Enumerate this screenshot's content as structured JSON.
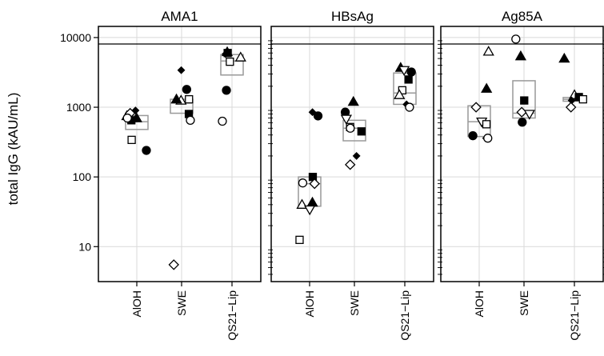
{
  "chart_data": {
    "type": "scatter",
    "ylabel": "total IgG (kAU/mL)",
    "yscale": "log",
    "ylim": [
      3.5,
      13000
    ],
    "yticks": [
      10,
      100,
      1000,
      10000
    ],
    "ytick_labels": [
      "10",
      "100",
      "1000",
      "10000"
    ],
    "grid": true,
    "categories": [
      "AlOH",
      "SWE",
      "QS21−Lip"
    ],
    "colors": {
      "marker": "#000000",
      "box": "#999999",
      "grid": "#d9d9d9"
    },
    "panels": [
      {
        "title": "AMA1",
        "boxes": [
          {
            "category": "AlOH",
            "q1": 480,
            "median": 620,
            "q3": 760
          },
          {
            "category": "SWE",
            "q1": 820,
            "median": 1150,
            "q3": 1300
          },
          {
            "category": "QS21−Lip",
            "q1": 2900,
            "median": 4600,
            "q3": 5700
          }
        ],
        "points": [
          {
            "category": "AlOH",
            "marker": "diamond-filled",
            "y": 900
          },
          {
            "category": "AlOH",
            "marker": "triangle-filled",
            "y": 700
          },
          {
            "category": "AlOH",
            "marker": "square-filled",
            "y": 650
          },
          {
            "category": "AlOH",
            "marker": "triangle-open",
            "y": 750
          },
          {
            "category": "AlOH",
            "marker": "diamond-open",
            "y": 820
          },
          {
            "category": "AlOH",
            "marker": "circle-open",
            "y": 700
          },
          {
            "category": "AlOH",
            "marker": "circle-filled",
            "y": 240
          },
          {
            "category": "AlOH",
            "marker": "square-open",
            "y": 340
          },
          {
            "category": "SWE",
            "marker": "diamond-filled",
            "y": 3400
          },
          {
            "category": "SWE",
            "marker": "circle-filled",
            "y": 1800
          },
          {
            "category": "SWE",
            "marker": "square-open",
            "y": 1300
          },
          {
            "category": "SWE",
            "marker": "triangle-open",
            "y": 1250
          },
          {
            "category": "SWE",
            "marker": "triangle-filled",
            "y": 1300
          },
          {
            "category": "SWE",
            "marker": "square-filled",
            "y": 800
          },
          {
            "category": "SWE",
            "marker": "circle-open",
            "y": 650
          },
          {
            "category": "SWE",
            "marker": "diamond-open",
            "y": 5.5
          },
          {
            "category": "QS21−Lip",
            "marker": "triangle-open",
            "y": 5200
          },
          {
            "category": "QS21−Lip",
            "marker": "square-filled",
            "y": 6000
          },
          {
            "category": "QS21−Lip",
            "marker": "triangle-filled",
            "y": 6200
          },
          {
            "category": "QS21−Lip",
            "marker": "diamond-filled",
            "y": 5800
          },
          {
            "category": "QS21−Lip",
            "marker": "square-open",
            "y": 4500
          },
          {
            "category": "QS21−Lip",
            "marker": "circle-filled",
            "y": 1750
          },
          {
            "category": "QS21−Lip",
            "marker": "circle-open",
            "y": 630
          }
        ]
      },
      {
        "title": "HBsAg",
        "boxes": [
          {
            "category": "AlOH",
            "q1": 38,
            "median": 80,
            "q3": 100
          },
          {
            "category": "SWE",
            "q1": 330,
            "median": 500,
            "q3": 650
          },
          {
            "category": "QS21−Lip",
            "q1": 1100,
            "median": 1600,
            "q3": 3100
          }
        ],
        "points": [
          {
            "category": "AlOH",
            "marker": "diamond-filled",
            "y": 850
          },
          {
            "category": "AlOH",
            "marker": "circle-filled",
            "y": 750
          },
          {
            "category": "AlOH",
            "marker": "square-filled",
            "y": 100
          },
          {
            "category": "AlOH",
            "marker": "circle-open",
            "y": 82
          },
          {
            "category": "AlOH",
            "marker": "diamond-open",
            "y": 80
          },
          {
            "category": "AlOH",
            "marker": "triangle-filled",
            "y": 43
          },
          {
            "category": "AlOH",
            "marker": "triangle-open",
            "y": 40
          },
          {
            "category": "AlOH",
            "marker": "triangle-down-open",
            "y": 34
          },
          {
            "category": "AlOH",
            "marker": "square-open",
            "y": 12.5
          },
          {
            "category": "SWE",
            "marker": "triangle-filled",
            "y": 1200
          },
          {
            "category": "SWE",
            "marker": "circle-filled",
            "y": 850
          },
          {
            "category": "SWE",
            "marker": "triangle-down-open",
            "y": 680
          },
          {
            "category": "SWE",
            "marker": "square-open",
            "y": 520
          },
          {
            "category": "SWE",
            "marker": "circle-open",
            "y": 500
          },
          {
            "category": "SWE",
            "marker": "square-filled",
            "y": 450
          },
          {
            "category": "SWE",
            "marker": "diamond-filled",
            "y": 200
          },
          {
            "category": "SWE",
            "marker": "diamond-open",
            "y": 150
          },
          {
            "category": "QS21−Lip",
            "marker": "triangle-filled",
            "y": 3700
          },
          {
            "category": "QS21−Lip",
            "marker": "triangle-down-open",
            "y": 3400
          },
          {
            "category": "QS21−Lip",
            "marker": "circle-filled",
            "y": 3200
          },
          {
            "category": "QS21−Lip",
            "marker": "square-filled",
            "y": 2500
          },
          {
            "category": "QS21−Lip",
            "marker": "square-open",
            "y": 1750
          },
          {
            "category": "QS21−Lip",
            "marker": "triangle-open",
            "y": 1500
          },
          {
            "category": "QS21−Lip",
            "marker": "diamond-filled",
            "y": 1100
          },
          {
            "category": "QS21−Lip",
            "marker": "circle-open",
            "y": 1000
          }
        ]
      },
      {
        "title": "Ag85A",
        "boxes": [
          {
            "category": "AlOH",
            "q1": 380,
            "median": 620,
            "q3": 1050
          },
          {
            "category": "SWE",
            "q1": 700,
            "median": 820,
            "q3": 2400
          },
          {
            "category": "QS21−Lip",
            "q1": 1220,
            "median": 1300,
            "q3": 1380
          }
        ],
        "points": [
          {
            "category": "AlOH",
            "marker": "triangle-open",
            "y": 6300
          },
          {
            "category": "AlOH",
            "marker": "triangle-filled",
            "y": 1850
          },
          {
            "category": "AlOH",
            "marker": "diamond-open",
            "y": 1000
          },
          {
            "category": "AlOH",
            "marker": "triangle-down-open",
            "y": 620
          },
          {
            "category": "AlOH",
            "marker": "square-open",
            "y": 570
          },
          {
            "category": "AlOH",
            "marker": "circle-filled",
            "y": 390
          },
          {
            "category": "AlOH",
            "marker": "diamond-filled",
            "y": 360
          },
          {
            "category": "AlOH",
            "marker": "circle-open",
            "y": 360
          },
          {
            "category": "SWE",
            "marker": "circle-open",
            "y": 9500
          },
          {
            "category": "SWE",
            "marker": "triangle-filled",
            "y": 5400
          },
          {
            "category": "SWE",
            "marker": "square-filled",
            "y": 1250
          },
          {
            "category": "SWE",
            "marker": "diamond-open",
            "y": 850
          },
          {
            "category": "SWE",
            "marker": "triangle-down-open",
            "y": 800
          },
          {
            "category": "SWE",
            "marker": "circle-filled",
            "y": 610
          },
          {
            "category": "QS21−Lip",
            "marker": "triangle-filled",
            "y": 5000
          },
          {
            "category": "QS21−Lip",
            "marker": "triangle-open",
            "y": 1500
          },
          {
            "category": "QS21−Lip",
            "marker": "square-filled",
            "y": 1400
          },
          {
            "category": "QS21−Lip",
            "marker": "square-open",
            "y": 1300
          },
          {
            "category": "QS21−Lip",
            "marker": "diamond-filled",
            "y": 1250
          },
          {
            "category": "QS21−Lip",
            "marker": "diamond-open",
            "y": 1000
          }
        ]
      }
    ]
  }
}
